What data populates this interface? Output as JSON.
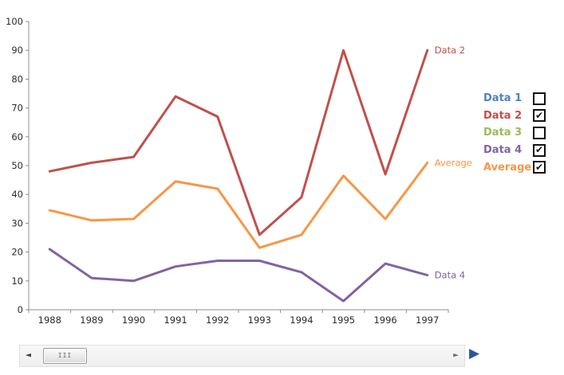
{
  "chart_data": {
    "type": "line",
    "title": "",
    "xlabel": "",
    "ylabel": "",
    "categories": [
      "1988",
      "1989",
      "1990",
      "1991",
      "1992",
      "1993",
      "1994",
      "1995",
      "1996",
      "1997"
    ],
    "series": [
      {
        "name": "Data 2",
        "color": "#C0504D",
        "end_label": "Data 2",
        "values": [
          48,
          51,
          53,
          74,
          67,
          26,
          39,
          90,
          47,
          90
        ]
      },
      {
        "name": "Data 4",
        "color": "#8064A2",
        "end_label": "Data 4",
        "values": [
          21,
          11,
          10,
          15,
          17,
          17,
          13,
          3,
          16,
          12
        ]
      },
      {
        "name": "Average",
        "color": "#F79646",
        "end_label": "Average",
        "values": [
          34.5,
          31,
          31.5,
          44.5,
          42,
          21.5,
          26,
          46.5,
          31.5,
          51
        ]
      }
    ],
    "hidden_series": [
      "Data 1",
      "Data 3"
    ],
    "ylim": [
      0,
      100
    ],
    "yticks": [
      0,
      10,
      20,
      30,
      40,
      50,
      60,
      70,
      80,
      90,
      100
    ],
    "grid": false,
    "legend_position": "right",
    "axis_color": "#8C8C8C",
    "tick_label_color": "#2b2b2b"
  },
  "legend": {
    "check_icon": "✔",
    "items": [
      {
        "label": "Data 1",
        "color": "#4F81BD",
        "checked": false
      },
      {
        "label": "Data 2",
        "color": "#C0504D",
        "checked": true
      },
      {
        "label": "Data 3",
        "color": "#9BBB59",
        "checked": false
      },
      {
        "label": "Data 4",
        "color": "#8064A2",
        "checked": true
      },
      {
        "label": "Average",
        "color": "#F79646",
        "checked": true
      }
    ]
  },
  "scrollbar": {
    "left_arrow_icon": "◄",
    "right_arrow_icon": "►",
    "grip_icon": "III",
    "play_icon": "▶",
    "play_color": "#2B579A"
  }
}
